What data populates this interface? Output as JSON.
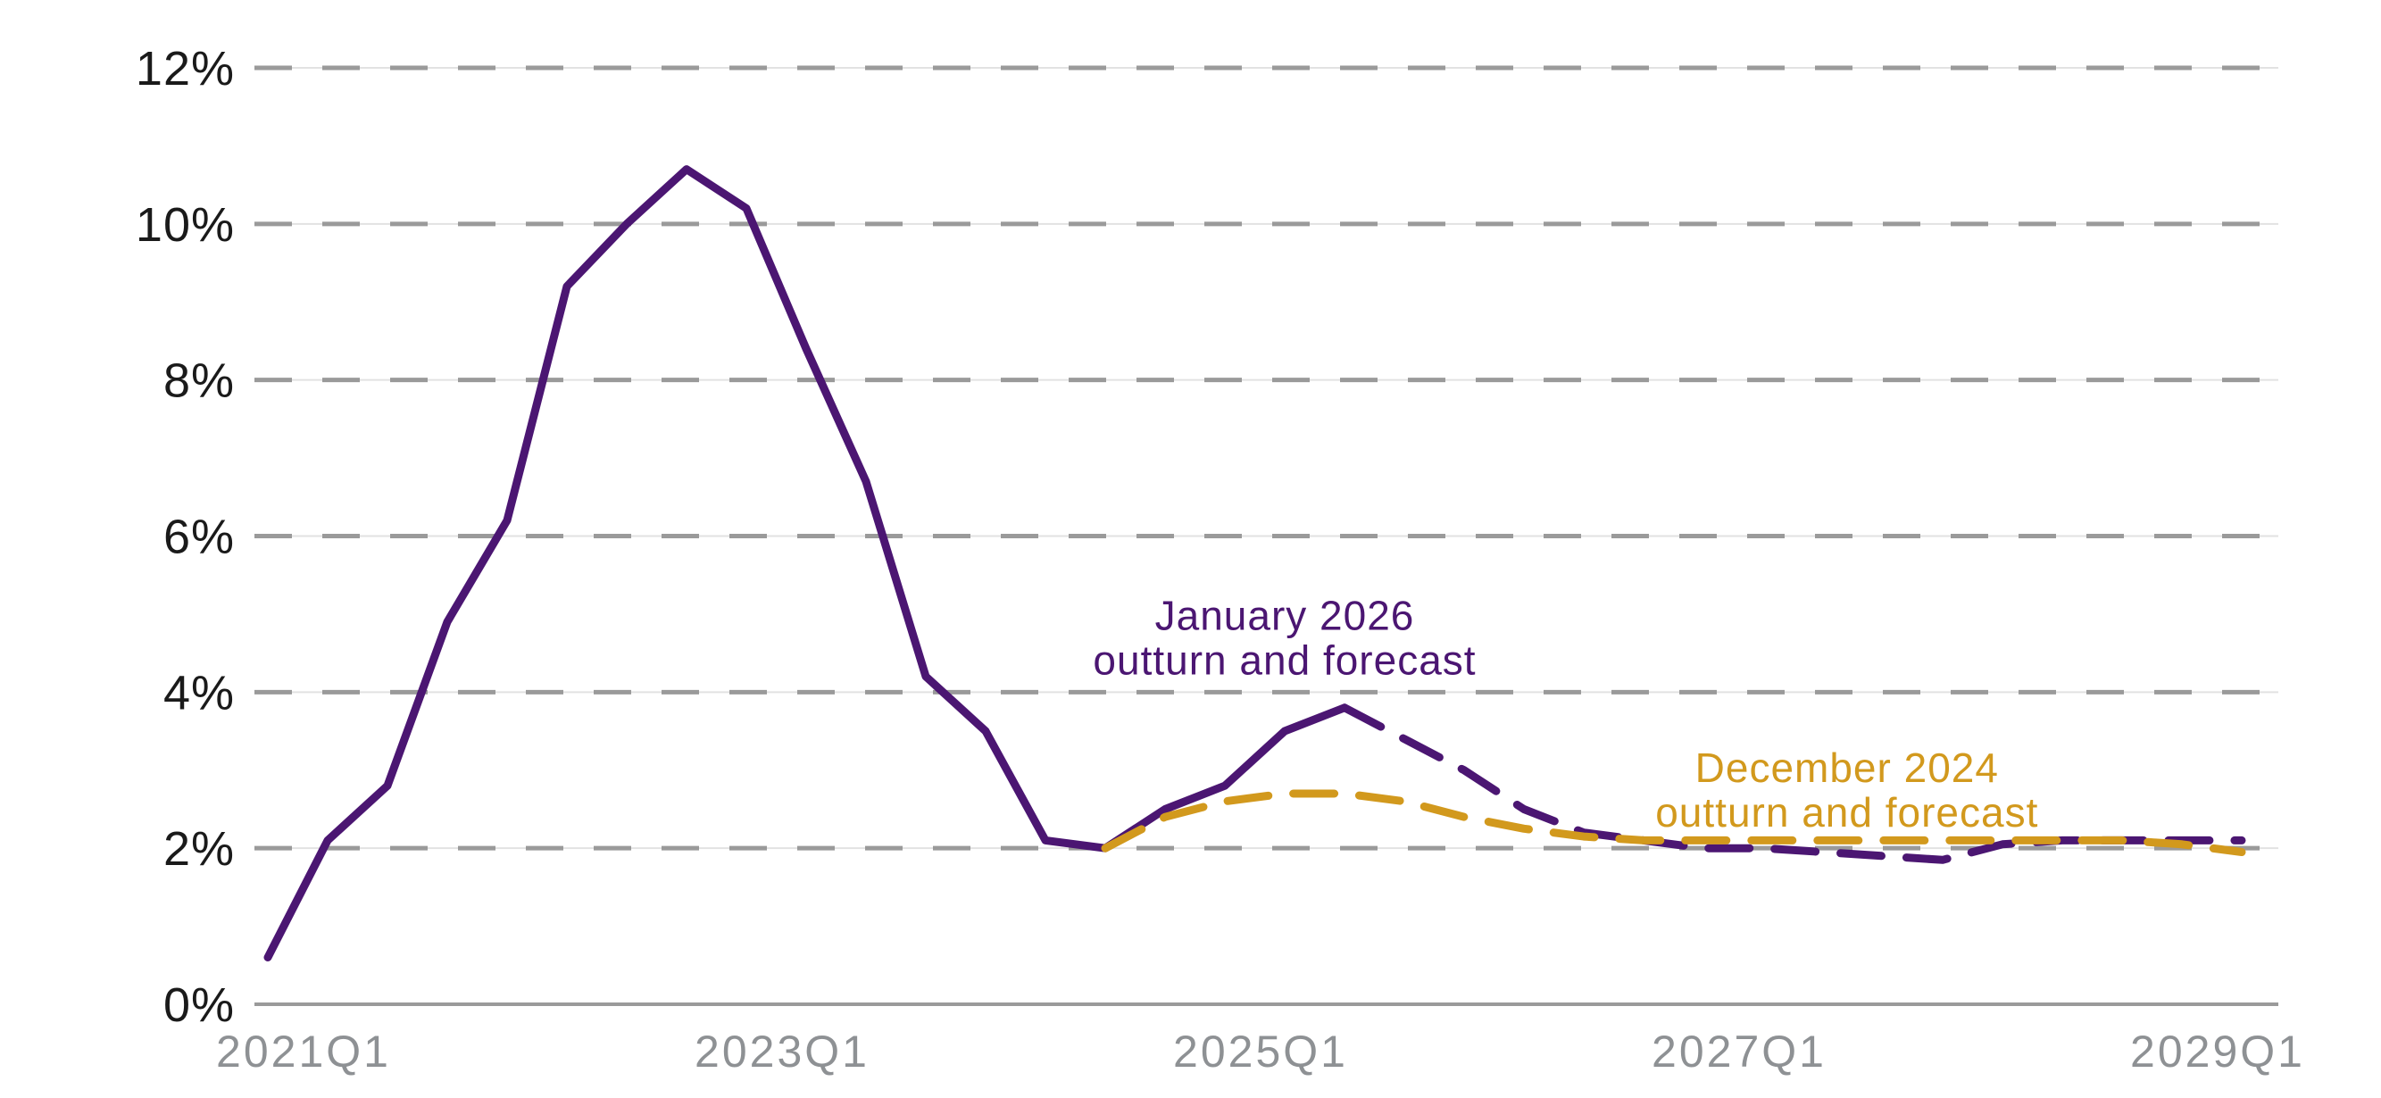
{
  "chart_data": {
    "type": "line",
    "title": "",
    "unit": "percent",
    "x": [
      "2021Q1",
      "2021Q2",
      "2021Q3",
      "2021Q4",
      "2022Q1",
      "2022Q2",
      "2022Q3",
      "2022Q4",
      "2023Q1",
      "2023Q2",
      "2023Q3",
      "2023Q4",
      "2024Q1",
      "2024Q2",
      "2024Q3",
      "2024Q4",
      "2025Q1",
      "2025Q2",
      "2025Q3",
      "2025Q4",
      "2026Q1",
      "2026Q2",
      "2026Q3",
      "2026Q4",
      "2027Q1",
      "2027Q2",
      "2027Q3",
      "2027Q4",
      "2028Q1",
      "2028Q2",
      "2028Q3",
      "2028Q4",
      "2029Q1",
      "2029Q2"
    ],
    "x_tick_labels": [
      "2021Q1",
      "2023Q1",
      "2025Q1",
      "2027Q1",
      "2029Q1"
    ],
    "x_tick_indices": [
      0,
      8,
      16,
      24,
      32
    ],
    "y_tick_labels": [
      "0%",
      "2%",
      "4%",
      "6%",
      "8%",
      "10%",
      "12%"
    ],
    "y_tick_values": [
      0,
      2,
      4,
      6,
      8,
      10,
      12
    ],
    "ylim": [
      0,
      12
    ],
    "grid": "horizontal-dashed",
    "legend_position": "inline-annotations",
    "series": [
      {
        "name": "January 2026 outturn and forecast",
        "color": "#4b1672",
        "outturn_style": "solid",
        "forecast_style": "dashed",
        "outturn_solid_through": "2025Q3",
        "solid_through_index": 18,
        "values": [
          0.6,
          2.1,
          2.8,
          4.9,
          6.2,
          9.2,
          10.0,
          10.7,
          10.2,
          8.4,
          6.7,
          4.2,
          3.5,
          2.1,
          2.0,
          2.5,
          2.8,
          3.5,
          3.8,
          3.4,
          3.0,
          2.5,
          2.2,
          2.1,
          2.0,
          2.0,
          1.95,
          1.9,
          1.85,
          2.05,
          2.1,
          2.1,
          2.1,
          2.1
        ]
      },
      {
        "name": "December 2024 outturn and forecast",
        "color": "#d2991d",
        "outturn_style": "hidden-behind-other-series",
        "forecast_style": "dashed",
        "starts_at": "2024Q3",
        "start_index": 14,
        "values": [
          null,
          null,
          null,
          null,
          null,
          null,
          null,
          null,
          null,
          null,
          null,
          null,
          null,
          null,
          2.0,
          2.4,
          2.6,
          2.7,
          2.7,
          2.6,
          2.4,
          2.25,
          2.15,
          2.1,
          2.1,
          2.1,
          2.1,
          2.1,
          2.1,
          2.1,
          2.1,
          2.1,
          2.05,
          1.95
        ]
      }
    ],
    "annotations": [
      {
        "id": "january-2026-label",
        "lines": [
          "January 2026",
          "outturn and forecast"
        ],
        "color": "#4b1672",
        "x_index": 17.0,
        "y_value": 4.8
      },
      {
        "id": "december-2024-label",
        "lines": [
          "December 2024",
          "outturn and forecast"
        ],
        "color": "#d2991d",
        "x_index": 26.4,
        "y_value": 2.85
      }
    ],
    "style_colors": {
      "grid_dash": "#9a9a9a",
      "grid_faint_line": "#e2e2e2",
      "axis_line": "#9a9a9a",
      "y_label_color": "#1a1a1a",
      "x_label_color": "#8e9194",
      "background": "#ffffff"
    }
  }
}
